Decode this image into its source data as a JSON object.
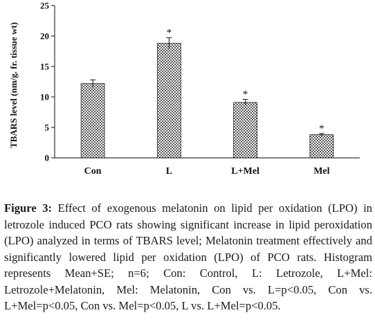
{
  "chart_data": {
    "type": "bar",
    "categories": [
      "Con",
      "L",
      "L+Mel",
      "Mel"
    ],
    "series": [
      {
        "values": [
          12.2,
          18.8,
          9.1,
          3.8
        ],
        "errors": [
          0.6,
          0.9,
          0.5,
          0.2
        ]
      }
    ],
    "significance_markers": [
      "",
      "*",
      "*",
      "*"
    ],
    "ylabel": "TBARS level (nm/g. fr. tissue wt)",
    "xlabel": "",
    "ylim": [
      0,
      25
    ],
    "yticks": [
      "0",
      "5",
      "10",
      "15",
      "20",
      "25"
    ],
    "grid": false,
    "legend": false,
    "bar_style": "stippled-dots"
  },
  "caption": {
    "label": "Figure 3:",
    "text": "Effect of exogenous melatonin on lipid per oxidation (LPO) in letrozole induced PCO rats showing significant increase in lipid peroxidation (LPO) analyzed in terms of TBARS level; Melatonin treatment effectively and significantly lowered lipid per oxidation (LPO) of PCO rats. Histogram represents Mean+SE; n=6; Con: Control, L: Letrozole, L+Mel: Letrozole+Melatonin, Mel: Melatonin, Con vs. L=p<0.05, Con vs. L+Mel=p<0.05, Con vs. Mel=p<0.05, L vs. L+Mel=p<0.05."
  }
}
